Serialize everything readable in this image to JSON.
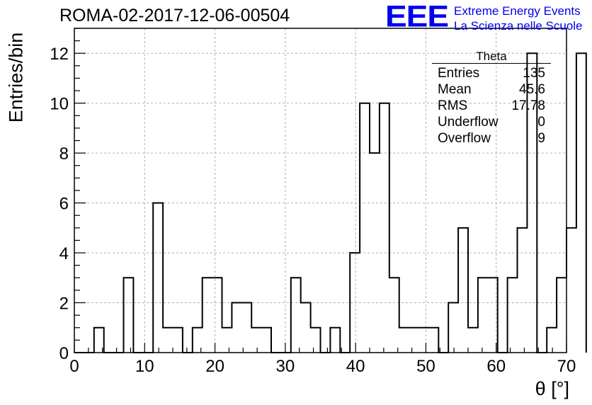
{
  "title": "ROMA-02-2017-12-06-00504",
  "logo": {
    "text": "EEE",
    "line1": "Extreme Energy Events",
    "line2": "La Scienza nelle Scuole",
    "color": "#0000ee"
  },
  "stats": {
    "title": "Theta",
    "rows": [
      {
        "label": "Entries",
        "value": "135"
      },
      {
        "label": "Mean",
        "value": "45.6"
      },
      {
        "label": "RMS",
        "value": "17.78"
      },
      {
        "label": "Underflow",
        "value": "0"
      },
      {
        "label": "Overflow",
        "value": "9"
      }
    ]
  },
  "chart_data": {
    "type": "bar",
    "histogram": true,
    "title": "ROMA-02-2017-12-06-00504",
    "xlabel": "θ [°]",
    "ylabel": "Entries/bin",
    "xlim": [
      0,
      70
    ],
    "ylim": [
      0,
      13
    ],
    "bin_width": 1.4,
    "x_ticks": [
      0,
      10,
      20,
      30,
      40,
      50,
      60,
      70
    ],
    "y_ticks": [
      0,
      2,
      4,
      6,
      8,
      10,
      12
    ],
    "grid": true,
    "values": [
      0,
      0,
      1,
      0,
      0,
      3,
      0,
      0,
      6,
      1,
      1,
      0,
      1,
      3,
      3,
      1,
      2,
      2,
      1,
      1,
      0,
      0,
      3,
      2,
      1,
      0,
      1,
      0,
      4,
      10,
      8,
      10,
      3,
      1,
      1,
      1,
      1,
      0,
      2,
      5,
      1,
      3,
      3,
      0,
      3,
      5,
      12,
      0,
      1,
      3,
      5,
      12
    ]
  }
}
